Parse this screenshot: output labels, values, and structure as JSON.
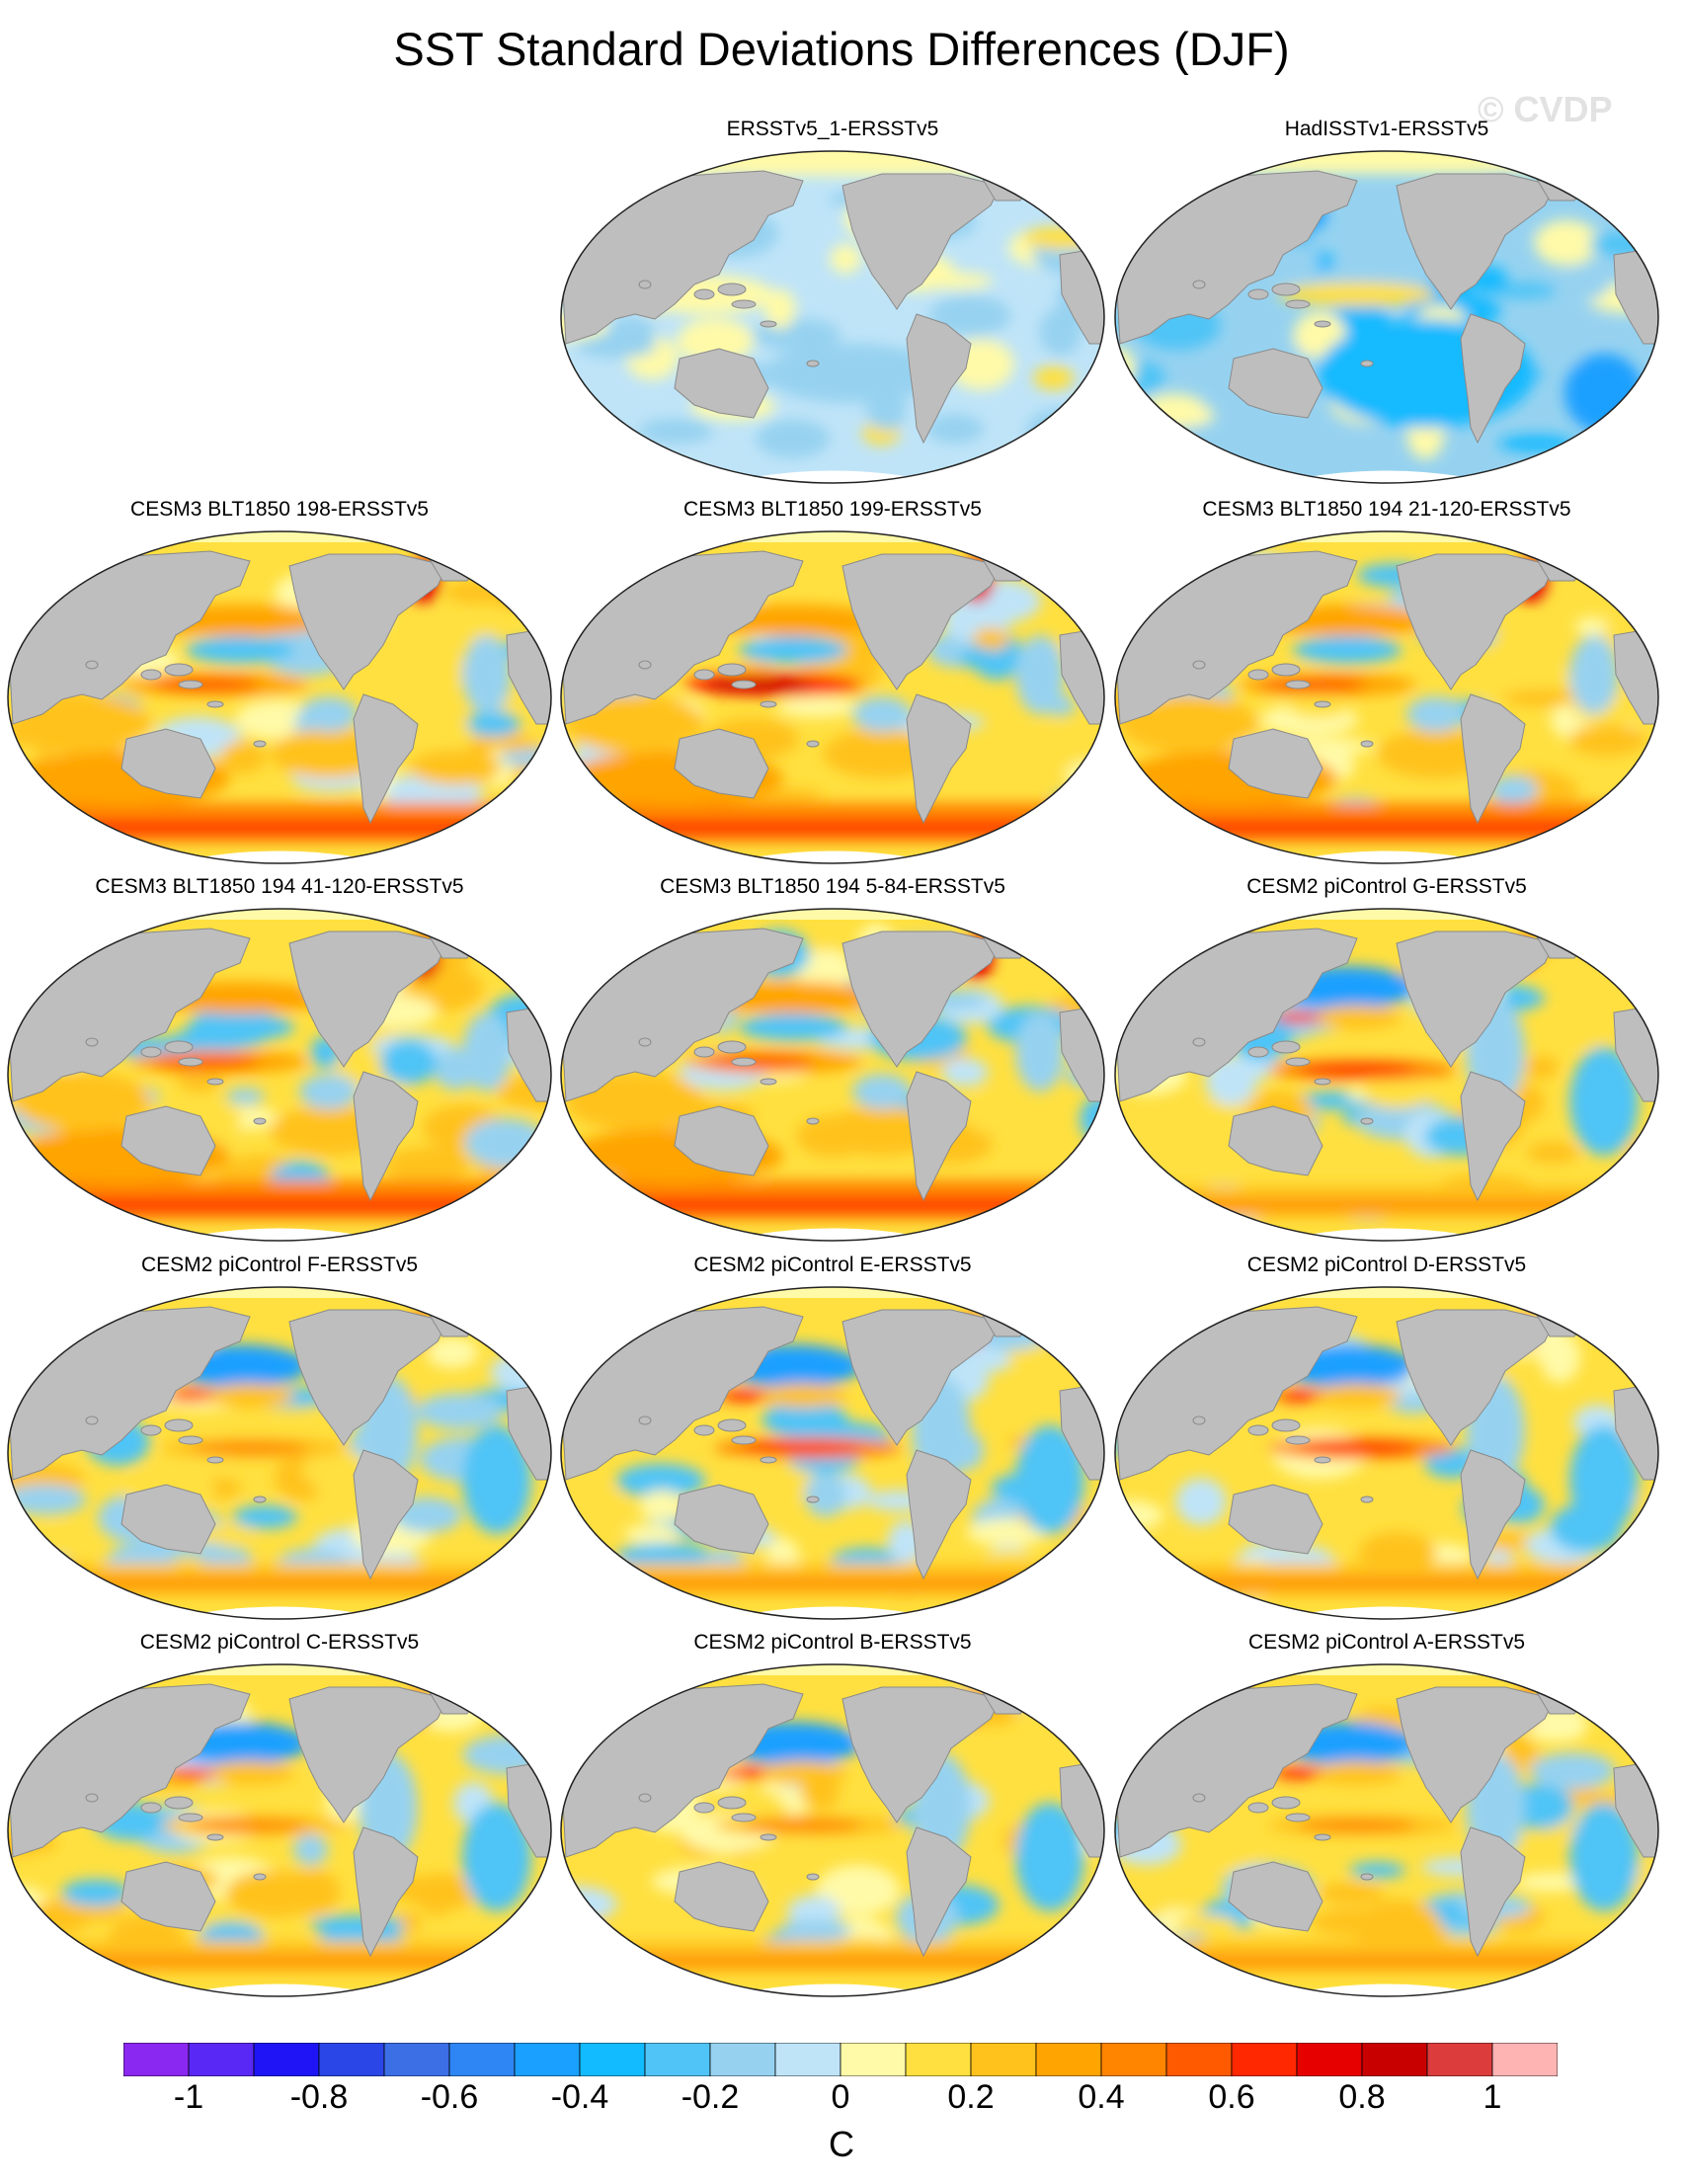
{
  "title": "SST Standard Deviations Differences (DJF)",
  "watermark": "© CVDP",
  "colors": {
    "land": "#bebebe",
    "land_edge": "#8a8a8a",
    "ice": "#ffffff"
  },
  "panels": [
    {
      "title": "ERSSTv5_1-ERSSTv5",
      "pattern": "weak-mixed"
    },
    {
      "title": "HadISSTv1-ERSSTv5",
      "pattern": "negative-dominant"
    },
    {
      "title": "CESM3 BLT1850 198-ERSSTv5",
      "pattern": "strong-positive"
    },
    {
      "title": "CESM3 BLT1850 199-ERSSTv5",
      "pattern": "strong-positive-enso"
    },
    {
      "title": "CESM3 BLT1850 194 21-120-ERSSTv5",
      "pattern": "strong-positive"
    },
    {
      "title": "CESM3 BLT1850 194 41-120-ERSSTv5",
      "pattern": "strong-positive"
    },
    {
      "title": "CESM3 BLT1850 194 5-84-ERSSTv5",
      "pattern": "strong-positive"
    },
    {
      "title": "CESM2 piControl G-ERSSTv5",
      "pattern": "moderate-positive-enso"
    },
    {
      "title": "CESM2 piControl F-ERSSTv5",
      "pattern": "moderate-positive"
    },
    {
      "title": "CESM2 piControl E-ERSSTv5",
      "pattern": "moderate-positive-enso"
    },
    {
      "title": "CESM2 piControl D-ERSSTv5",
      "pattern": "moderate-positive-enso"
    },
    {
      "title": "CESM2 piControl C-ERSSTv5",
      "pattern": "moderate-positive"
    },
    {
      "title": "CESM2 piControl B-ERSSTv5",
      "pattern": "moderate-positive"
    },
    {
      "title": "CESM2 piControl A-ERSSTv5",
      "pattern": "moderate-positive"
    }
  ],
  "colorbar": {
    "colors": [
      "#8a27f0",
      "#5a28f5",
      "#1e14f5",
      "#2a46e6",
      "#3c6ee6",
      "#2e86f4",
      "#1aa0ff",
      "#12baff",
      "#50c4f6",
      "#96d2f0",
      "#bfe4f8",
      "#fffaa8",
      "#ffe040",
      "#ffc21c",
      "#ffa400",
      "#ff8400",
      "#ff5a00",
      "#ff2800",
      "#e60000",
      "#c80000",
      "#dc3c3c",
      "#ffb4b4"
    ],
    "tick_labels": [
      "-1",
      "-0.8",
      "-0.6",
      "-0.4",
      "-0.2",
      "0",
      "0.2",
      "0.4",
      "0.6",
      "0.8",
      "1"
    ],
    "units": "C"
  }
}
